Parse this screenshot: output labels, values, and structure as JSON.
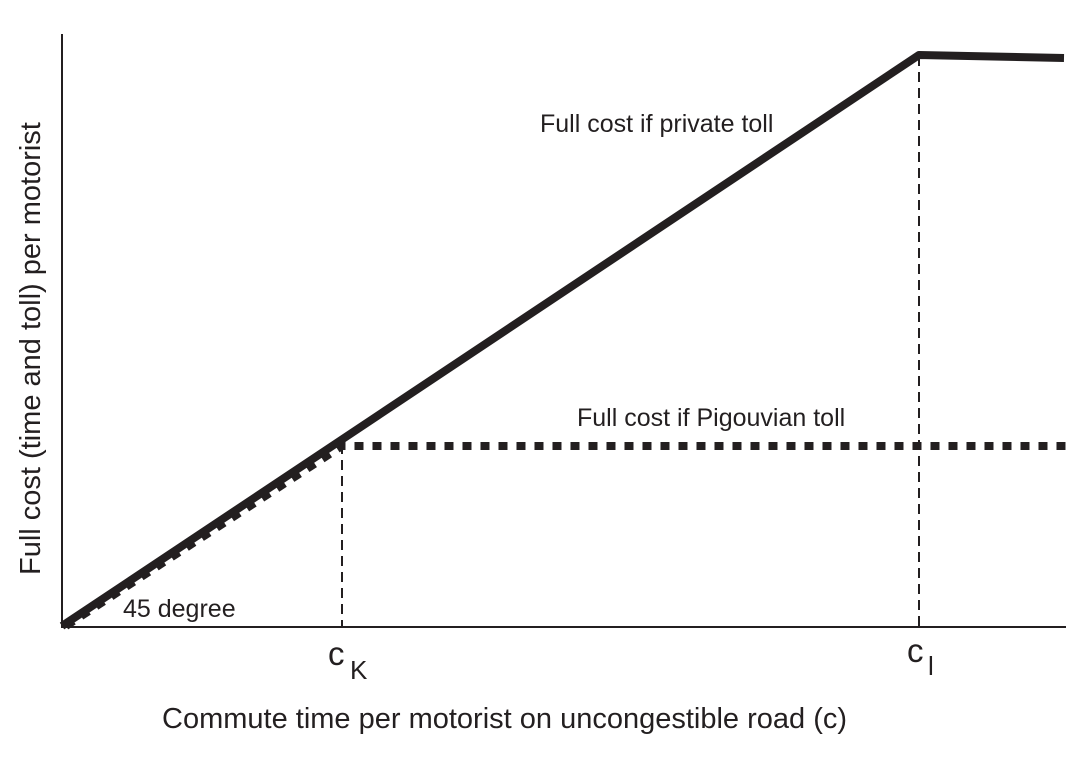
{
  "diagram": {
    "y_axis_label": "Full cost (time and toll) per motorist",
    "x_axis_label": "Commute time per motorist on uncongestible road (c)",
    "tick_ck_main": "c",
    "tick_ck_sub": "K",
    "tick_cl_main": "c",
    "tick_cl_sub": "l",
    "curve_private_label": "Full cost if private toll",
    "curve_pigouvian_label": "Full cost if Pigouvian toll",
    "diagonal_label": "45 degree"
  }
}
